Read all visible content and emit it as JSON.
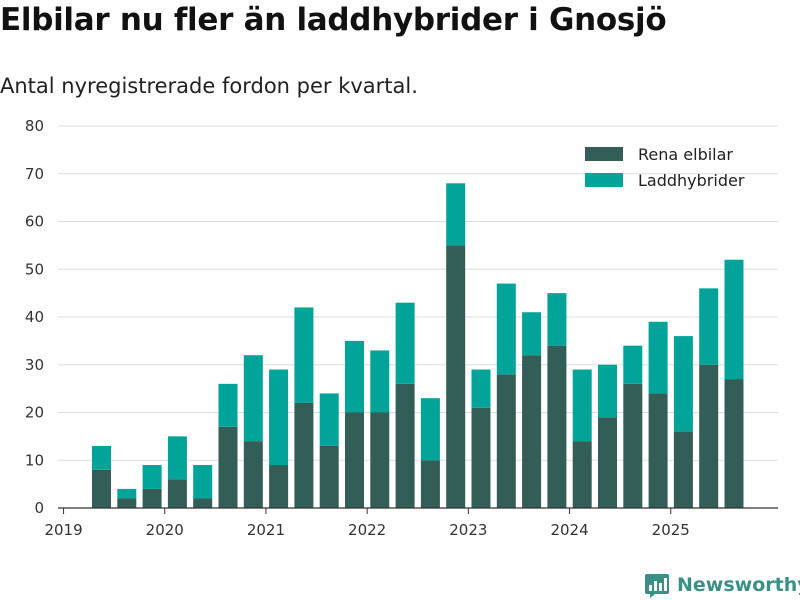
{
  "colors": {
    "elbilar": "#335d57",
    "laddhybrider": "#02a49a",
    "grid": "#dddddd",
    "axis": "#333333",
    "brand": "#3a8f86"
  },
  "brand": {
    "name": "Newsworthy",
    "icon": "newsworthy-logo-icon"
  },
  "chart_data": {
    "type": "bar",
    "stacked": true,
    "title": "Elbilar nu fler än laddhybrider i Gnosjö",
    "subtitle": "Antal nyregistrerade fordon per kvartal.",
    "xlabel": "",
    "ylabel": "",
    "ylim": [
      0,
      80
    ],
    "yticks": [
      0,
      10,
      20,
      30,
      40,
      50,
      60,
      70,
      80
    ],
    "grid": true,
    "legend_position": "top-right",
    "categories": [
      "2019Q2",
      "2019Q3",
      "2019Q4",
      "2020Q1",
      "2020Q2",
      "2020Q3",
      "2020Q4",
      "2021Q1",
      "2021Q2",
      "2021Q3",
      "2021Q4",
      "2022Q1",
      "2022Q2",
      "2022Q3",
      "2022Q4",
      "2023Q1",
      "2023Q2",
      "2023Q3",
      "2023Q4",
      "2024Q1",
      "2024Q2",
      "2024Q3",
      "2024Q4",
      "2025Q1",
      "2025Q2",
      "2025Q3"
    ],
    "x_tick_labels": [
      {
        "label": "2019",
        "index": -1.5
      },
      {
        "label": "2020",
        "index": 2.5
      },
      {
        "label": "2021",
        "index": 6.5
      },
      {
        "label": "2022",
        "index": 10.5
      },
      {
        "label": "2023",
        "index": 14.5
      },
      {
        "label": "2024",
        "index": 18.5
      },
      {
        "label": "2025",
        "index": 22.5
      }
    ],
    "series": [
      {
        "name": "Rena elbilar",
        "key": "elbilar",
        "values": [
          8,
          2,
          4,
          6,
          2,
          17,
          14,
          9,
          22,
          13,
          20,
          20,
          26,
          10,
          55,
          21,
          28,
          32,
          34,
          14,
          19,
          26,
          24,
          16,
          30,
          27
        ]
      },
      {
        "name": "Laddhybrider",
        "key": "laddhybrider",
        "values": [
          5,
          2,
          5,
          9,
          7,
          9,
          18,
          20,
          20,
          11,
          15,
          13,
          17,
          13,
          13,
          8,
          19,
          9,
          11,
          15,
          11,
          8,
          15,
          20,
          16,
          25
        ]
      }
    ]
  }
}
